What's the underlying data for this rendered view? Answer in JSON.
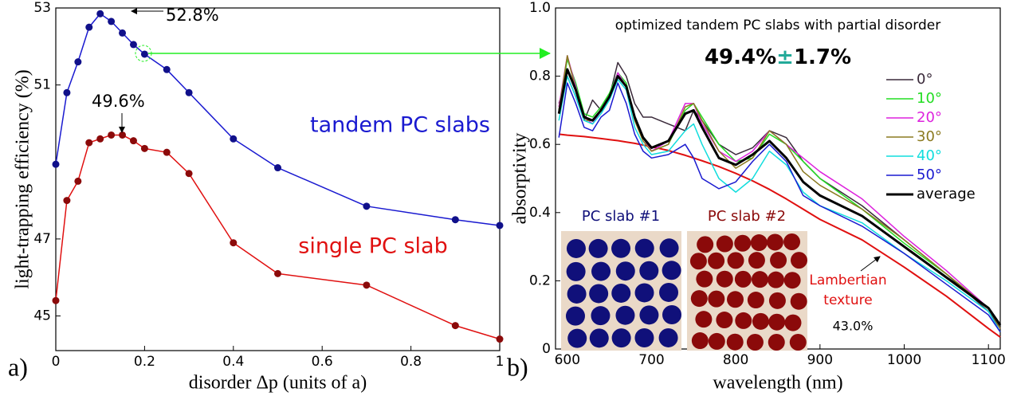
{
  "chart_data": [
    {
      "type": "line",
      "panel_label": "a)",
      "x_label": "disorder Δp (units of a)",
      "y_label": "light-trapping efficiency (%)",
      "x": [
        0,
        0.025,
        0.05,
        0.075,
        0.1,
        0.125,
        0.15,
        0.175,
        0.2,
        0.25,
        0.3,
        0.4,
        0.5,
        0.7,
        0.9,
        1.0
      ],
      "series": [
        {
          "name": "tandem PC slabs",
          "color": "#1a1ad0",
          "marker_color": "#10108a",
          "values": [
            48.94,
            50.8,
            51.6,
            52.5,
            52.85,
            52.65,
            52.35,
            52.05,
            51.8,
            51.4,
            50.8,
            49.6,
            48.85,
            47.85,
            47.5,
            47.35
          ]
        },
        {
          "name": "single PC slab",
          "color": "#e01010",
          "marker_color": "#8b0a0a",
          "values": [
            45.4,
            48.0,
            48.5,
            49.5,
            49.6,
            49.7,
            49.7,
            49.55,
            49.35,
            49.25,
            48.7,
            46.9,
            46.1,
            45.8,
            44.75,
            44.4
          ]
        }
      ],
      "annotations": [
        "52.8%",
        "49.6%"
      ],
      "xlim": [
        0,
        1
      ],
      "ylim": [
        44.1,
        53
      ],
      "xticks": [
        0,
        0.2,
        0.4,
        0.6,
        0.8,
        {
          "value": 1,
          "label": "1"
        }
      ],
      "yticks": [
        45,
        47,
        51,
        53
      ]
    },
    {
      "type": "line",
      "panel_label": "b)",
      "title": "optimized tandem PC slabs with partial disorder",
      "headline": [
        "49.4%",
        "±",
        "1.7%"
      ],
      "x_label": "wavelength (nm)",
      "y_label": "absorptivity",
      "x": [
        590,
        600,
        610,
        620,
        630,
        640,
        650,
        660,
        670,
        680,
        690,
        700,
        720,
        740,
        750,
        760,
        780,
        800,
        820,
        840,
        860,
        880,
        900,
        950,
        1000,
        1050,
        1100,
        1114
      ],
      "series": [
        {
          "name": "0°",
          "color": "#3a2a3a",
          "linewidth": 1.5,
          "values": [
            0.72,
            0.8,
            0.74,
            0.67,
            0.73,
            0.7,
            0.74,
            0.84,
            0.8,
            0.72,
            0.68,
            0.68,
            0.66,
            0.64,
            0.7,
            0.67,
            0.6,
            0.57,
            0.59,
            0.64,
            0.62,
            0.55,
            0.5,
            0.42,
            0.32,
            0.22,
            0.11,
            0.06
          ]
        },
        {
          "name": "10°",
          "color": "#22dd22",
          "linewidth": 1.5,
          "values": [
            0.7,
            0.85,
            0.78,
            0.69,
            0.68,
            0.71,
            0.75,
            0.81,
            0.78,
            0.68,
            0.62,
            0.58,
            0.6,
            0.7,
            0.72,
            0.68,
            0.6,
            0.55,
            0.56,
            0.63,
            0.6,
            0.55,
            0.5,
            0.41,
            0.31,
            0.22,
            0.12,
            0.06
          ]
        },
        {
          "name": "20°",
          "color": "#dd22dd",
          "linewidth": 1.5,
          "values": [
            0.71,
            0.86,
            0.77,
            0.68,
            0.66,
            0.7,
            0.74,
            0.81,
            0.77,
            0.68,
            0.62,
            0.58,
            0.61,
            0.72,
            0.72,
            0.66,
            0.58,
            0.55,
            0.58,
            0.64,
            0.6,
            0.56,
            0.52,
            0.44,
            0.33,
            0.23,
            0.12,
            0.06
          ]
        },
        {
          "name": "30°",
          "color": "#8b7a20",
          "linewidth": 1.5,
          "values": [
            0.7,
            0.86,
            0.76,
            0.67,
            0.67,
            0.7,
            0.74,
            0.8,
            0.77,
            0.67,
            0.61,
            0.58,
            0.6,
            0.71,
            0.72,
            0.67,
            0.58,
            0.53,
            0.56,
            0.64,
            0.6,
            0.52,
            0.48,
            0.41,
            0.32,
            0.22,
            0.12,
            0.06
          ]
        },
        {
          "name": "40°",
          "color": "#11dddd",
          "linewidth": 1.5,
          "values": [
            0.67,
            0.8,
            0.74,
            0.67,
            0.66,
            0.69,
            0.73,
            0.79,
            0.76,
            0.65,
            0.6,
            0.57,
            0.58,
            0.64,
            0.66,
            0.6,
            0.5,
            0.46,
            0.5,
            0.58,
            0.54,
            0.46,
            0.42,
            0.37,
            0.28,
            0.2,
            0.11,
            0.05
          ]
        },
        {
          "name": "50°",
          "color": "#1a1ad0",
          "linewidth": 1.5,
          "values": [
            0.62,
            0.78,
            0.72,
            0.65,
            0.64,
            0.68,
            0.7,
            0.78,
            0.72,
            0.63,
            0.58,
            0.56,
            0.57,
            0.6,
            0.56,
            0.5,
            0.47,
            0.49,
            0.55,
            0.6,
            0.55,
            0.45,
            0.42,
            0.36,
            0.28,
            0.19,
            0.1,
            0.05
          ]
        },
        {
          "name": "average",
          "color": "#000000",
          "linewidth": 3,
          "values": [
            0.69,
            0.82,
            0.76,
            0.68,
            0.67,
            0.7,
            0.74,
            0.8,
            0.77,
            0.68,
            0.62,
            0.59,
            0.61,
            0.69,
            0.7,
            0.65,
            0.56,
            0.54,
            0.57,
            0.61,
            0.56,
            0.49,
            0.45,
            0.39,
            0.3,
            0.21,
            0.12,
            0.07
          ]
        }
      ],
      "lambertian": {
        "color": "#e01010",
        "values": [
          0.63,
          0.627,
          0.625,
          0.623,
          0.62,
          0.617,
          0.614,
          0.611,
          0.607,
          0.603,
          0.598,
          0.593,
          0.582,
          0.568,
          0.56,
          0.552,
          0.535,
          0.515,
          0.493,
          0.468,
          0.44,
          0.41,
          0.38,
          0.32,
          0.24,
          0.155,
          0.06,
          0.035
        ]
      },
      "annotations": [
        "Lambertian",
        "texture",
        "43.0%"
      ],
      "insets": [
        {
          "title": "PC slab #1",
          "color": "#10107a"
        },
        {
          "title": "PC slab #2",
          "color": "#8b0a0a"
        }
      ],
      "legend": "upper right",
      "xlim": [
        586,
        1114
      ],
      "ylim": [
        0,
        1
      ],
      "xticks": [
        600,
        700,
        800,
        900,
        1000,
        1100
      ],
      "yticks": [
        0,
        0.2,
        0.4,
        0.6,
        0.8,
        {
          "value": 1,
          "label": "1.0"
        }
      ]
    }
  ]
}
